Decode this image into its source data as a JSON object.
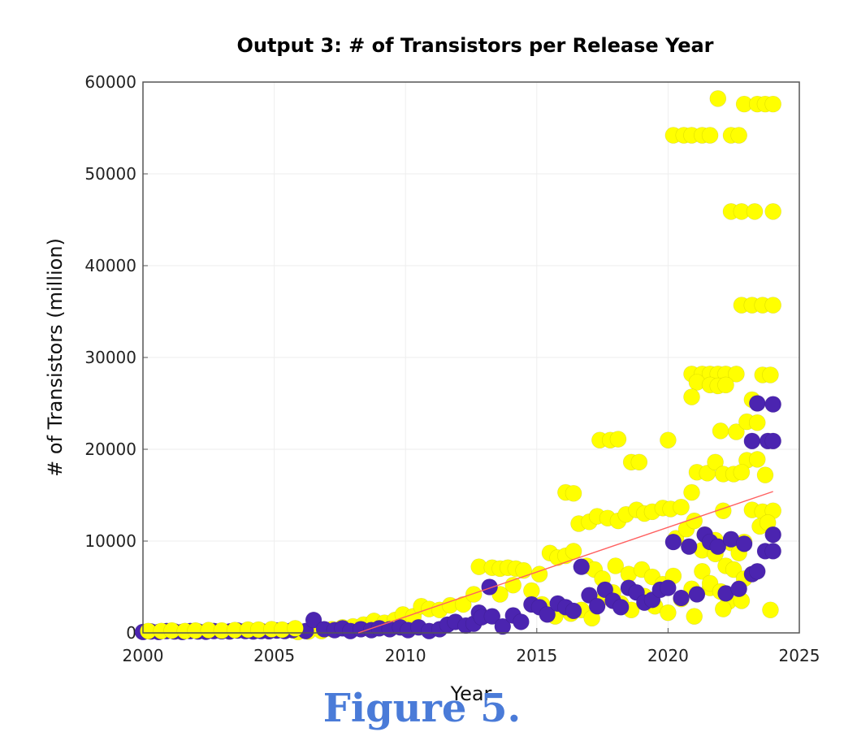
{
  "chart_data": {
    "type": "scatter",
    "title": "Output 3: # of Transistors per Release Year",
    "xlabel": "Year",
    "ylabel": "# of Transistors (million)",
    "xlim": [
      2000,
      2025
    ],
    "ylim": [
      0,
      60000
    ],
    "x_ticks": [
      2000,
      2005,
      2010,
      2015,
      2020,
      2025
    ],
    "y_ticks": [
      0,
      10000,
      20000,
      30000,
      40000,
      50000,
      60000
    ],
    "grid": true,
    "legend": "none",
    "series": [
      {
        "color": "#ffff00",
        "points": [
          [
            2005.9,
            100
          ],
          [
            2006.3,
            150
          ],
          [
            2006.8,
            200
          ],
          [
            2007.2,
            400
          ],
          [
            2007.6,
            600
          ],
          [
            2008.0,
            700
          ],
          [
            2008.4,
            900
          ],
          [
            2008.8,
            1300
          ],
          [
            2009.2,
            1100
          ],
          [
            2009.6,
            1400
          ],
          [
            2009.9,
            2000
          ],
          [
            2010.3,
            1800
          ],
          [
            2010.6,
            2900
          ],
          [
            2010.9,
            2600
          ],
          [
            2011.3,
            2500
          ],
          [
            2011.7,
            3000
          ],
          [
            2012.2,
            3100
          ],
          [
            2012.6,
            4200
          ],
          [
            2012.8,
            7200
          ],
          [
            2013.3,
            7100
          ],
          [
            2013.6,
            7000
          ],
          [
            2013.9,
            7100
          ],
          [
            2014.2,
            7000
          ],
          [
            2014.5,
            6800
          ],
          [
            2014.1,
            5200
          ],
          [
            2013.6,
            4200
          ],
          [
            2014.8,
            4600
          ],
          [
            2015.1,
            6400
          ],
          [
            2015.5,
            8700
          ],
          [
            2015.8,
            8200
          ],
          [
            2016.1,
            8400
          ],
          [
            2016.4,
            8900
          ],
          [
            2016.9,
            7300
          ],
          [
            2017.2,
            6900
          ],
          [
            2017.5,
            5900
          ],
          [
            2015.2,
            3100
          ],
          [
            2015.7,
            1800
          ],
          [
            2016.3,
            2100
          ],
          [
            2016.7,
            2500
          ],
          [
            2017.1,
            1600
          ],
          [
            2017.6,
            3900
          ],
          [
            2017.9,
            4400
          ],
          [
            2018.2,
            3200
          ],
          [
            2018.6,
            2500
          ],
          [
            2016.1,
            15300
          ],
          [
            2016.4,
            15200
          ],
          [
            2016.6,
            11900
          ],
          [
            2017.0,
            12100
          ],
          [
            2017.3,
            12700
          ],
          [
            2017.7,
            12500
          ],
          [
            2018.1,
            12200
          ],
          [
            2018.4,
            12900
          ],
          [
            2018.8,
            13400
          ],
          [
            2019.1,
            13000
          ],
          [
            2019.4,
            13200
          ],
          [
            2019.8,
            13600
          ],
          [
            2020.1,
            13500
          ],
          [
            2020.5,
            13700
          ],
          [
            2017.4,
            21000
          ],
          [
            2017.8,
            21000
          ],
          [
            2018.1,
            21100
          ],
          [
            2018.6,
            18600
          ],
          [
            2018.9,
            18600
          ],
          [
            2020.0,
            21000
          ],
          [
            2018.0,
            7300
          ],
          [
            2018.5,
            6400
          ],
          [
            2019.0,
            6900
          ],
          [
            2019.4,
            6100
          ],
          [
            2019.8,
            5300
          ],
          [
            2020.2,
            6200
          ],
          [
            2019.1,
            4000
          ],
          [
            2019.5,
            2900
          ],
          [
            2020.0,
            2200
          ],
          [
            2020.5,
            3700
          ],
          [
            2020.9,
            4800
          ],
          [
            2021.3,
            6700
          ],
          [
            2021.6,
            4900
          ],
          [
            2021.0,
            1800
          ],
          [
            2020.2,
            54200
          ],
          [
            2020.6,
            54200
          ],
          [
            2020.9,
            54200
          ],
          [
            2021.3,
            54200
          ],
          [
            2021.6,
            54200
          ],
          [
            2021.9,
            58200
          ],
          [
            2022.4,
            54200
          ],
          [
            2022.7,
            54200
          ],
          [
            2022.9,
            57600
          ],
          [
            2023.4,
            57600
          ],
          [
            2023.7,
            57600
          ],
          [
            2024.0,
            57600
          ],
          [
            2022.4,
            45900
          ],
          [
            2022.8,
            45900
          ],
          [
            2023.3,
            45900
          ],
          [
            2024.0,
            45900
          ],
          [
            2022.8,
            35700
          ],
          [
            2023.2,
            35700
          ],
          [
            2023.6,
            35700
          ],
          [
            2024.0,
            35700
          ],
          [
            2020.9,
            28200
          ],
          [
            2021.3,
            28200
          ],
          [
            2021.6,
            28200
          ],
          [
            2021.9,
            28200
          ],
          [
            2022.2,
            28200
          ],
          [
            2022.6,
            28200
          ],
          [
            2021.1,
            27300
          ],
          [
            2021.6,
            27000
          ],
          [
            2021.9,
            26900
          ],
          [
            2022.2,
            27000
          ],
          [
            2020.9,
            25700
          ],
          [
            2023.2,
            25400
          ],
          [
            2023.6,
            28100
          ],
          [
            2023.9,
            28100
          ],
          [
            2022.0,
            22000
          ],
          [
            2022.6,
            21900
          ],
          [
            2023.0,
            23000
          ],
          [
            2023.4,
            22900
          ],
          [
            2023.0,
            18800
          ],
          [
            2023.4,
            18900
          ],
          [
            2023.7,
            17200
          ],
          [
            2021.1,
            17500
          ],
          [
            2021.5,
            17400
          ],
          [
            2021.8,
            18600
          ],
          [
            2022.1,
            17300
          ],
          [
            2022.5,
            17300
          ],
          [
            2022.8,
            17500
          ],
          [
            2020.9,
            15300
          ],
          [
            2023.2,
            13400
          ],
          [
            2023.6,
            13200
          ],
          [
            2024.0,
            13300
          ],
          [
            2023.5,
            11600
          ],
          [
            2023.8,
            12000
          ],
          [
            2020.3,
            10300
          ],
          [
            2020.7,
            11300
          ],
          [
            2021.0,
            12200
          ],
          [
            2021.4,
            10700
          ],
          [
            2021.8,
            10100
          ],
          [
            2022.1,
            13300
          ],
          [
            2022.4,
            9800
          ],
          [
            2022.7,
            8700
          ],
          [
            2022.9,
            9900
          ],
          [
            2021.3,
            9000
          ],
          [
            2021.8,
            8600
          ],
          [
            2022.2,
            7300
          ],
          [
            2022.5,
            6900
          ],
          [
            2022.9,
            5900
          ],
          [
            2021.6,
            5400
          ],
          [
            2022.0,
            4500
          ],
          [
            2022.3,
            3400
          ],
          [
            2022.1,
            2600
          ],
          [
            2022.8,
            3500
          ],
          [
            2023.9,
            2500
          ]
        ]
      },
      {
        "color": "#4b24b0",
        "points": [
          [
            2000.0,
            100
          ],
          [
            2000.3,
            150
          ],
          [
            2000.6,
            100
          ],
          [
            2000.9,
            200
          ],
          [
            2001.2,
            150
          ],
          [
            2001.5,
            100
          ],
          [
            2001.8,
            200
          ],
          [
            2002.1,
            150
          ],
          [
            2002.4,
            120
          ],
          [
            2002.7,
            200
          ],
          [
            2003.0,
            180
          ],
          [
            2003.3,
            150
          ],
          [
            2003.6,
            250
          ],
          [
            2003.9,
            200
          ],
          [
            2004.2,
            150
          ],
          [
            2004.5,
            200
          ],
          [
            2004.8,
            180
          ],
          [
            2005.1,
            250
          ],
          [
            2005.4,
            200
          ],
          [
            2005.7,
            300
          ],
          [
            2006.2,
            200
          ],
          [
            2006.5,
            1400
          ],
          [
            2006.9,
            400
          ],
          [
            2007.3,
            300
          ],
          [
            2007.6,
            500
          ],
          [
            2007.9,
            200
          ],
          [
            2008.3,
            400
          ],
          [
            2008.7,
            300
          ],
          [
            2009.0,
            500
          ],
          [
            2009.4,
            400
          ],
          [
            2009.8,
            600
          ],
          [
            2010.1,
            300
          ],
          [
            2010.5,
            600
          ],
          [
            2010.9,
            200
          ],
          [
            2011.3,
            400
          ],
          [
            2011.6,
            900
          ],
          [
            2011.9,
            1200
          ],
          [
            2012.3,
            800
          ],
          [
            2012.6,
            1000
          ],
          [
            2012.8,
            2200
          ],
          [
            2012.9,
            1700
          ],
          [
            2013.2,
            5000
          ],
          [
            2013.3,
            1800
          ],
          [
            2013.7,
            700
          ],
          [
            2014.1,
            1900
          ],
          [
            2014.4,
            1200
          ],
          [
            2014.8,
            3100
          ],
          [
            2015.1,
            2800
          ],
          [
            2015.4,
            2000
          ],
          [
            2015.8,
            3200
          ],
          [
            2016.1,
            2800
          ],
          [
            2016.4,
            2400
          ],
          [
            2016.7,
            7200
          ],
          [
            2017.0,
            4100
          ],
          [
            2017.3,
            2900
          ],
          [
            2017.6,
            4700
          ],
          [
            2017.9,
            3500
          ],
          [
            2018.2,
            2800
          ],
          [
            2018.5,
            4900
          ],
          [
            2018.8,
            4400
          ],
          [
            2019.1,
            3300
          ],
          [
            2019.4,
            3600
          ],
          [
            2019.7,
            4700
          ],
          [
            2020.0,
            4900
          ],
          [
            2020.2,
            9900
          ],
          [
            2020.5,
            3800
          ],
          [
            2020.8,
            9400
          ],
          [
            2021.1,
            4200
          ],
          [
            2021.4,
            10700
          ],
          [
            2021.6,
            9900
          ],
          [
            2021.9,
            9400
          ],
          [
            2022.2,
            4300
          ],
          [
            2022.4,
            10200
          ],
          [
            2022.7,
            4800
          ],
          [
            2022.9,
            9700
          ],
          [
            2023.2,
            6400
          ],
          [
            2023.4,
            6700
          ],
          [
            2023.2,
            20900
          ],
          [
            2023.4,
            25000
          ],
          [
            2023.8,
            20900
          ],
          [
            2024.0,
            20900
          ],
          [
            2024.0,
            24900
          ],
          [
            2023.7,
            8900
          ],
          [
            2024.0,
            8900
          ],
          [
            2024.0,
            10700
          ]
        ]
      },
      {
        "color": "#ffff00",
        "points": [
          [
            2000.2,
            200
          ],
          [
            2000.7,
            200
          ],
          [
            2001.1,
            250
          ],
          [
            2001.6,
            200
          ],
          [
            2002.0,
            250
          ],
          [
            2002.5,
            300
          ],
          [
            2003.0,
            250
          ],
          [
            2003.5,
            300
          ],
          [
            2004.0,
            350
          ],
          [
            2004.4,
            350
          ],
          [
            2004.9,
            400
          ],
          [
            2005.3,
            350
          ],
          [
            2005.8,
            500
          ]
        ]
      }
    ],
    "trend_line": {
      "color": "#ff6060",
      "points": [
        [
          2008.2,
          0
        ],
        [
          2024.0,
          15400
        ]
      ]
    }
  },
  "figure_caption": "Figure 5."
}
